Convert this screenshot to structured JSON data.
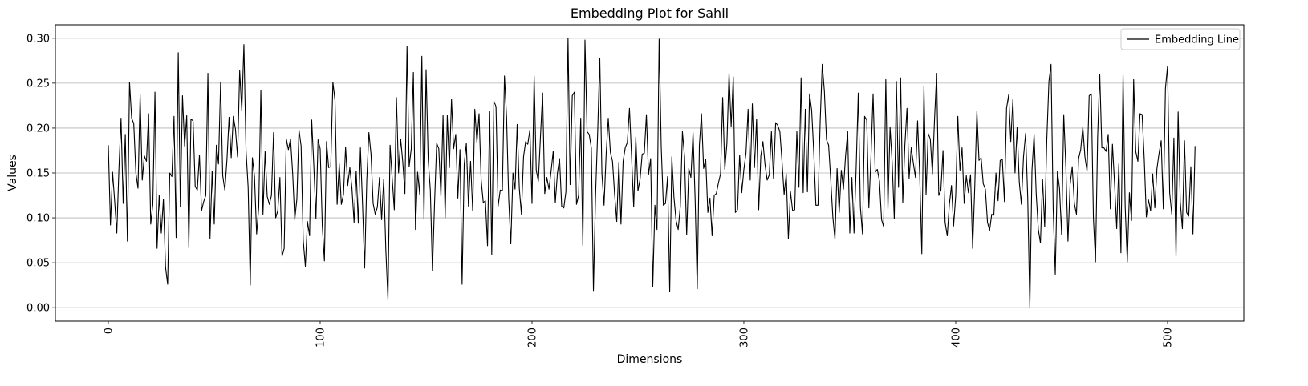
{
  "chart_data": {
    "type": "line",
    "title": "Embedding Plot for Sahil",
    "xlabel": "Dimensions",
    "ylabel": "Values",
    "xlim": [
      -25,
      536
    ],
    "ylim": [
      -0.015,
      0.315
    ],
    "xticks": [
      0,
      100,
      200,
      300,
      400,
      500
    ],
    "yticks": [
      0.0,
      0.05,
      0.1,
      0.15,
      0.2,
      0.25,
      0.3
    ],
    "ytick_labels": [
      "0.00",
      "0.05",
      "0.10",
      "0.15",
      "0.20",
      "0.25",
      "0.30"
    ],
    "xtick_rotation": "vertical",
    "grid": "horizontal",
    "legend": "top-right",
    "series": [
      {
        "name": "Embedding Line",
        "color": "#000000",
        "x_start": 0,
        "values": [
          0.181,
          0.092,
          0.151,
          0.118,
          0.083,
          0.155,
          0.211,
          0.116,
          0.193,
          0.074,
          0.251,
          0.211,
          0.205,
          0.15,
          0.133,
          0.237,
          0.142,
          0.169,
          0.163,
          0.216,
          0.093,
          0.115,
          0.24,
          0.066,
          0.125,
          0.083,
          0.121,
          0.045,
          0.026,
          0.15,
          0.146,
          0.213,
          0.078,
          0.284,
          0.112,
          0.236,
          0.18,
          0.214,
          0.067,
          0.21,
          0.208,
          0.135,
          0.131,
          0.17,
          0.108,
          0.118,
          0.125,
          0.261,
          0.077,
          0.152,
          0.093,
          0.181,
          0.16,
          0.251,
          0.147,
          0.131,
          0.165,
          0.212,
          0.167,
          0.213,
          0.199,
          0.168,
          0.264,
          0.219,
          0.293,
          0.175,
          0.134,
          0.025,
          0.167,
          0.146,
          0.082,
          0.112,
          0.242,
          0.104,
          0.174,
          0.124,
          0.115,
          0.125,
          0.195,
          0.1,
          0.108,
          0.145,
          0.057,
          0.066,
          0.188,
          0.176,
          0.188,
          0.15,
          0.098,
          0.121,
          0.198,
          0.18,
          0.075,
          0.046,
          0.096,
          0.08,
          0.209,
          0.158,
          0.099,
          0.187,
          0.177,
          0.091,
          0.052,
          0.185,
          0.156,
          0.157,
          0.251,
          0.231,
          0.115,
          0.16,
          0.115,
          0.126,
          0.179,
          0.136,
          0.156,
          0.133,
          0.095,
          0.152,
          0.094,
          0.178,
          0.115,
          0.044,
          0.142,
          0.195,
          0.171,
          0.116,
          0.104,
          0.112,
          0.145,
          0.098,
          0.143,
          0.064,
          0.009,
          0.181,
          0.144,
          0.109,
          0.234,
          0.15,
          0.188,
          0.162,
          0.127,
          0.291,
          0.157,
          0.177,
          0.262,
          0.087,
          0.151,
          0.126,
          0.28,
          0.099,
          0.265,
          0.165,
          0.131,
          0.041,
          0.117,
          0.183,
          0.177,
          0.124,
          0.214,
          0.1,
          0.214,
          0.156,
          0.232,
          0.177,
          0.193,
          0.122,
          0.176,
          0.026,
          0.16,
          0.183,
          0.113,
          0.163,
          0.108,
          0.221,
          0.184,
          0.216,
          0.142,
          0.117,
          0.119,
          0.069,
          0.219,
          0.059,
          0.23,
          0.224,
          0.113,
          0.131,
          0.13,
          0.258,
          0.212,
          0.121,
          0.071,
          0.15,
          0.132,
          0.204,
          0.133,
          0.104,
          0.168,
          0.185,
          0.182,
          0.198,
          0.116,
          0.258,
          0.153,
          0.141,
          0.191,
          0.239,
          0.127,
          0.145,
          0.132,
          0.152,
          0.174,
          0.117,
          0.15,
          0.166,
          0.113,
          0.111,
          0.129,
          0.3,
          0.137,
          0.236,
          0.24,
          0.115,
          0.125,
          0.211,
          0.069,
          0.298,
          0.196,
          0.193,
          0.178,
          0.019,
          0.125,
          0.196,
          0.278,
          0.149,
          0.114,
          0.171,
          0.211,
          0.173,
          0.163,
          0.126,
          0.096,
          0.162,
          0.093,
          0.163,
          0.178,
          0.184,
          0.222,
          0.168,
          0.112,
          0.19,
          0.13,
          0.143,
          0.171,
          0.172,
          0.215,
          0.148,
          0.166,
          0.023,
          0.114,
          0.087,
          0.299,
          0.179,
          0.114,
          0.116,
          0.146,
          0.018,
          0.168,
          0.123,
          0.097,
          0.087,
          0.113,
          0.196,
          0.168,
          0.081,
          0.155,
          0.145,
          0.195,
          0.12,
          0.021,
          0.181,
          0.216,
          0.155,
          0.165,
          0.106,
          0.122,
          0.08,
          0.125,
          0.127,
          0.139,
          0.149,
          0.234,
          0.154,
          0.183,
          0.261,
          0.202,
          0.257,
          0.106,
          0.109,
          0.17,
          0.128,
          0.154,
          0.172,
          0.221,
          0.142,
          0.227,
          0.156,
          0.21,
          0.109,
          0.169,
          0.185,
          0.159,
          0.142,
          0.148,
          0.196,
          0.144,
          0.206,
          0.203,
          0.196,
          0.163,
          0.126,
          0.149,
          0.077,
          0.129,
          0.108,
          0.109,
          0.196,
          0.134,
          0.256,
          0.128,
          0.221,
          0.129,
          0.238,
          0.22,
          0.173,
          0.114,
          0.114,
          0.206,
          0.271,
          0.241,
          0.187,
          0.181,
          0.143,
          0.101,
          0.076,
          0.155,
          0.106,
          0.153,
          0.132,
          0.169,
          0.196,
          0.083,
          0.145,
          0.083,
          0.155,
          0.239,
          0.112,
          0.082,
          0.213,
          0.209,
          0.111,
          0.168,
          0.238,
          0.151,
          0.154,
          0.141,
          0.098,
          0.09,
          0.254,
          0.11,
          0.201,
          0.162,
          0.099,
          0.252,
          0.134,
          0.256,
          0.117,
          0.181,
          0.222,
          0.144,
          0.178,
          0.161,
          0.145,
          0.208,
          0.148,
          0.06,
          0.246,
          0.126,
          0.194,
          0.188,
          0.149,
          0.21,
          0.261,
          0.125,
          0.131,
          0.175,
          0.095,
          0.08,
          0.115,
          0.136,
          0.091,
          0.125,
          0.213,
          0.153,
          0.178,
          0.116,
          0.147,
          0.128,
          0.148,
          0.066,
          0.135,
          0.219,
          0.164,
          0.167,
          0.138,
          0.132,
          0.095,
          0.086,
          0.104,
          0.103,
          0.15,
          0.119,
          0.164,
          0.165,
          0.118,
          0.222,
          0.237,
          0.185,
          0.232,
          0.15,
          0.201,
          0.14,
          0.115,
          0.168,
          0.194,
          0.122,
          0.0,
          0.153,
          0.193,
          0.127,
          0.087,
          0.072,
          0.143,
          0.09,
          0.187,
          0.252,
          0.271,
          0.111,
          0.037,
          0.152,
          0.133,
          0.081,
          0.215,
          0.156,
          0.074,
          0.137,
          0.157,
          0.116,
          0.104,
          0.166,
          0.176,
          0.201,
          0.168,
          0.152,
          0.236,
          0.238,
          0.1,
          0.051,
          0.19,
          0.26,
          0.178,
          0.178,
          0.174,
          0.193,
          0.11,
          0.182,
          0.138,
          0.088,
          0.16,
          0.061,
          0.259,
          0.113,
          0.051,
          0.128,
          0.097,
          0.254,
          0.174,
          0.163,
          0.216,
          0.215,
          0.166,
          0.101,
          0.12,
          0.108,
          0.149,
          0.111,
          0.155,
          0.172,
          0.186,
          0.11,
          0.244,
          0.269,
          0.128,
          0.104,
          0.189,
          0.057,
          0.218,
          0.118,
          0.088,
          0.186,
          0.106,
          0.102,
          0.157,
          0.082,
          0.18
        ]
      }
    ]
  }
}
